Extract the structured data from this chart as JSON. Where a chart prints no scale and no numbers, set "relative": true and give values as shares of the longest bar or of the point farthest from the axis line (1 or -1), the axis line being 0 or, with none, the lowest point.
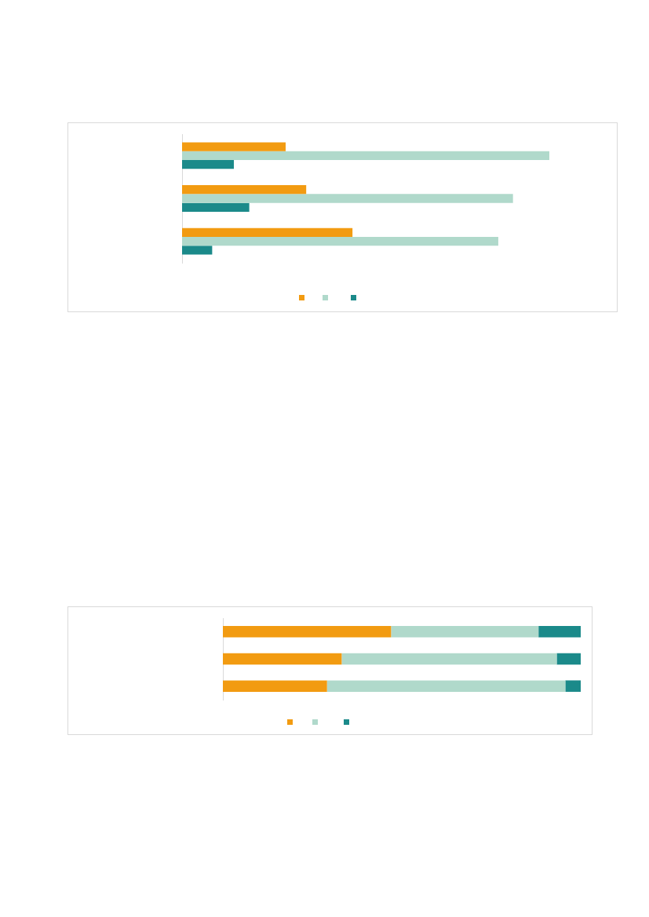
{
  "chart_data": [
    {
      "type": "bar",
      "orientation": "horizontal",
      "relative": true,
      "categories": [
        null,
        null,
        null
      ],
      "grid": false,
      "series": [
        {
          "color": "#f29b11",
          "values": [
            0.282,
            0.338,
            0.464
          ]
        },
        {
          "color": "#b0d9cb",
          "values": [
            1,
            0.901,
            0.861
          ]
        },
        {
          "color": "#1b8a8a",
          "values": [
            0.141,
            0.183,
            0.082
          ]
        }
      ]
    },
    {
      "type": "bar",
      "orientation": "horizontal",
      "stacked": true,
      "relative": true,
      "categories": [
        null,
        null,
        null
      ],
      "grid": false,
      "series": [
        {
          "color": "#f29b11",
          "values": [
            0.47,
            0.332,
            0.291
          ]
        },
        {
          "color": "#b0d9cb",
          "values": [
            0.412,
            0.601,
            0.666
          ]
        },
        {
          "color": "#1b8a8a",
          "values": [
            0.118,
            0.067,
            0.043
          ]
        }
      ]
    }
  ]
}
